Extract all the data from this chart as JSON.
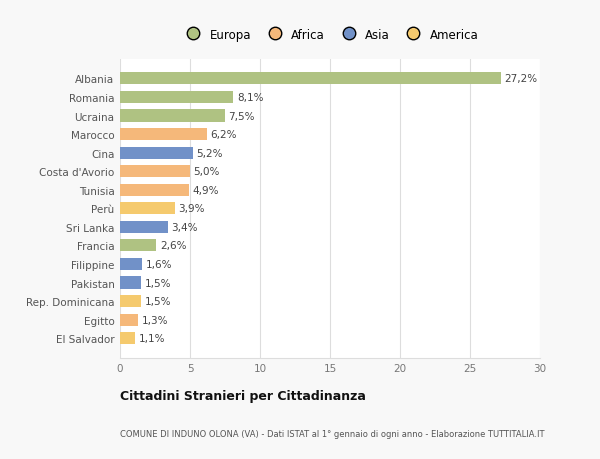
{
  "countries": [
    "El Salvador",
    "Egitto",
    "Rep. Dominicana",
    "Pakistan",
    "Filippine",
    "Francia",
    "Sri Lanka",
    "Perù",
    "Tunisia",
    "Costa d'Avorio",
    "Cina",
    "Marocco",
    "Ucraina",
    "Romania",
    "Albania"
  ],
  "values": [
    1.1,
    1.3,
    1.5,
    1.5,
    1.6,
    2.6,
    3.4,
    3.9,
    4.9,
    5.0,
    5.2,
    6.2,
    7.5,
    8.1,
    27.2
  ],
  "labels": [
    "1,1%",
    "1,3%",
    "1,5%",
    "1,5%",
    "1,6%",
    "2,6%",
    "3,4%",
    "3,9%",
    "4,9%",
    "5,0%",
    "5,2%",
    "6,2%",
    "7,5%",
    "8,1%",
    "27,2%"
  ],
  "colors": [
    "#f5ca6e",
    "#f5b87a",
    "#f5ca6e",
    "#7191c8",
    "#7191c8",
    "#afc282",
    "#7191c8",
    "#f5ca6e",
    "#f5b87a",
    "#f5b87a",
    "#7191c8",
    "#f5b87a",
    "#afc282",
    "#afc282",
    "#afc282"
  ],
  "legend_labels": [
    "Europa",
    "Africa",
    "Asia",
    "America"
  ],
  "legend_colors": [
    "#afc282",
    "#f5b87a",
    "#7191c8",
    "#f5ca6e"
  ],
  "title": "Cittadini Stranieri per Cittadinanza",
  "subtitle": "COMUNE DI INDUNO OLONA (VA) - Dati ISTAT al 1° gennaio di ogni anno - Elaborazione TUTTITALIA.IT",
  "xlim": [
    0,
    30
  ],
  "background_color": "#f8f8f8",
  "plot_bg_color": "#ffffff",
  "grid_color": "#dddddd",
  "bar_height": 0.65
}
